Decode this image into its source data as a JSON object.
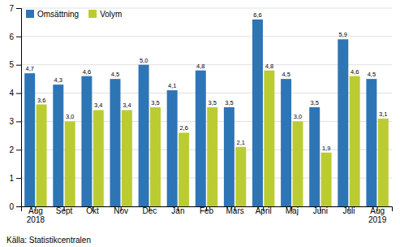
{
  "chart_data": {
    "type": "bar",
    "categories": [
      "Aug\n2018",
      "Sept",
      "Okt",
      "Nov",
      "Dec",
      "Jan",
      "Feb",
      "Mars",
      "April",
      "Maj",
      "Juni",
      "Juli",
      "Aug\n2019"
    ],
    "series": [
      {
        "name": "Omsättning",
        "color": "#2E75B6",
        "values": [
          4.7,
          4.3,
          4.6,
          4.5,
          5.0,
          4.1,
          4.8,
          3.5,
          6.6,
          4.5,
          3.5,
          5.9,
          4.5
        ],
        "value_labels": [
          "4,7",
          "4,3",
          "4,6",
          "4,5",
          "5,0",
          "4,1",
          "4,8",
          "3,5",
          "6,6",
          "4,5",
          "3,5",
          "5,9",
          "4,5"
        ]
      },
      {
        "name": "Volym",
        "color": "#BBCC33",
        "values": [
          3.6,
          3.0,
          3.4,
          3.4,
          3.5,
          2.6,
          3.5,
          2.1,
          4.8,
          3.0,
          1.9,
          4.6,
          3.1
        ],
        "value_labels": [
          "3,6",
          "3,0",
          "3,4",
          "3,4",
          "3,5",
          "2,6",
          "3,5",
          "2,1",
          "4,8",
          "3,0",
          "1,9",
          "4,6",
          "3,1"
        ]
      }
    ],
    "ylim": [
      0,
      7
    ],
    "yticks": [
      0,
      1,
      2,
      3,
      4,
      5,
      6,
      7
    ],
    "grid": true,
    "legend": "upper left",
    "data_labels": true,
    "annotations": [
      "Källa: Statistikcentralen"
    ]
  }
}
